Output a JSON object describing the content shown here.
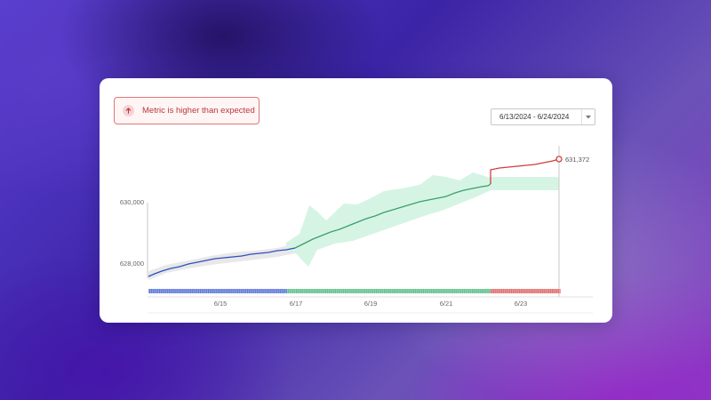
{
  "alert": {
    "message": "Metric is higher than expected",
    "icon": "arrow-up-icon",
    "color": "#b8383d"
  },
  "date_range": {
    "value": "6/13/2024 - 6/24/2024",
    "icon": "chevron-down-icon"
  },
  "chart_data": {
    "type": "line",
    "x_ticks": [
      "6/15",
      "6/17",
      "6/19",
      "6/21",
      "6/23"
    ],
    "y_ticks": [
      "630,000",
      "628,000"
    ],
    "current_value_label": "631,372",
    "series": [
      {
        "segment": "history",
        "color": "#2f4fc4",
        "x": [
          "6/13",
          "6/13.5",
          "6/14",
          "6/14.5",
          "6/15",
          "6/15.5",
          "6/16",
          "6/16.5",
          "6/16.8"
        ],
        "values": [
          627600,
          627850,
          628000,
          628150,
          628250,
          628350,
          628420,
          628500,
          628600
        ]
      },
      {
        "segment": "within-expected",
        "color": "#3aa06d",
        "x": [
          "6/16.8",
          "6/17.5",
          "6/18",
          "6/18.5",
          "6/19",
          "6/19.5",
          "6/20",
          "6/20.5",
          "6/21",
          "6/21.5",
          "6/22"
        ],
        "values": [
          628600,
          628900,
          629100,
          629300,
          629450,
          629650,
          629800,
          629950,
          630050,
          630250,
          630400
        ]
      },
      {
        "segment": "higher-than-expected",
        "color": "#d23c3c",
        "x": [
          "6/22",
          "6/22.5",
          "6/23",
          "6/23.5",
          "6/24"
        ],
        "values": [
          631000,
          631050,
          631120,
          631200,
          631372
        ]
      }
    ],
    "colors": {
      "history": "#2f4fc4",
      "expected": "#3aa06d",
      "expected_band": "#d6f4e4",
      "anomaly": "#d23c3c",
      "history_band": "#e6e6e6"
    }
  }
}
